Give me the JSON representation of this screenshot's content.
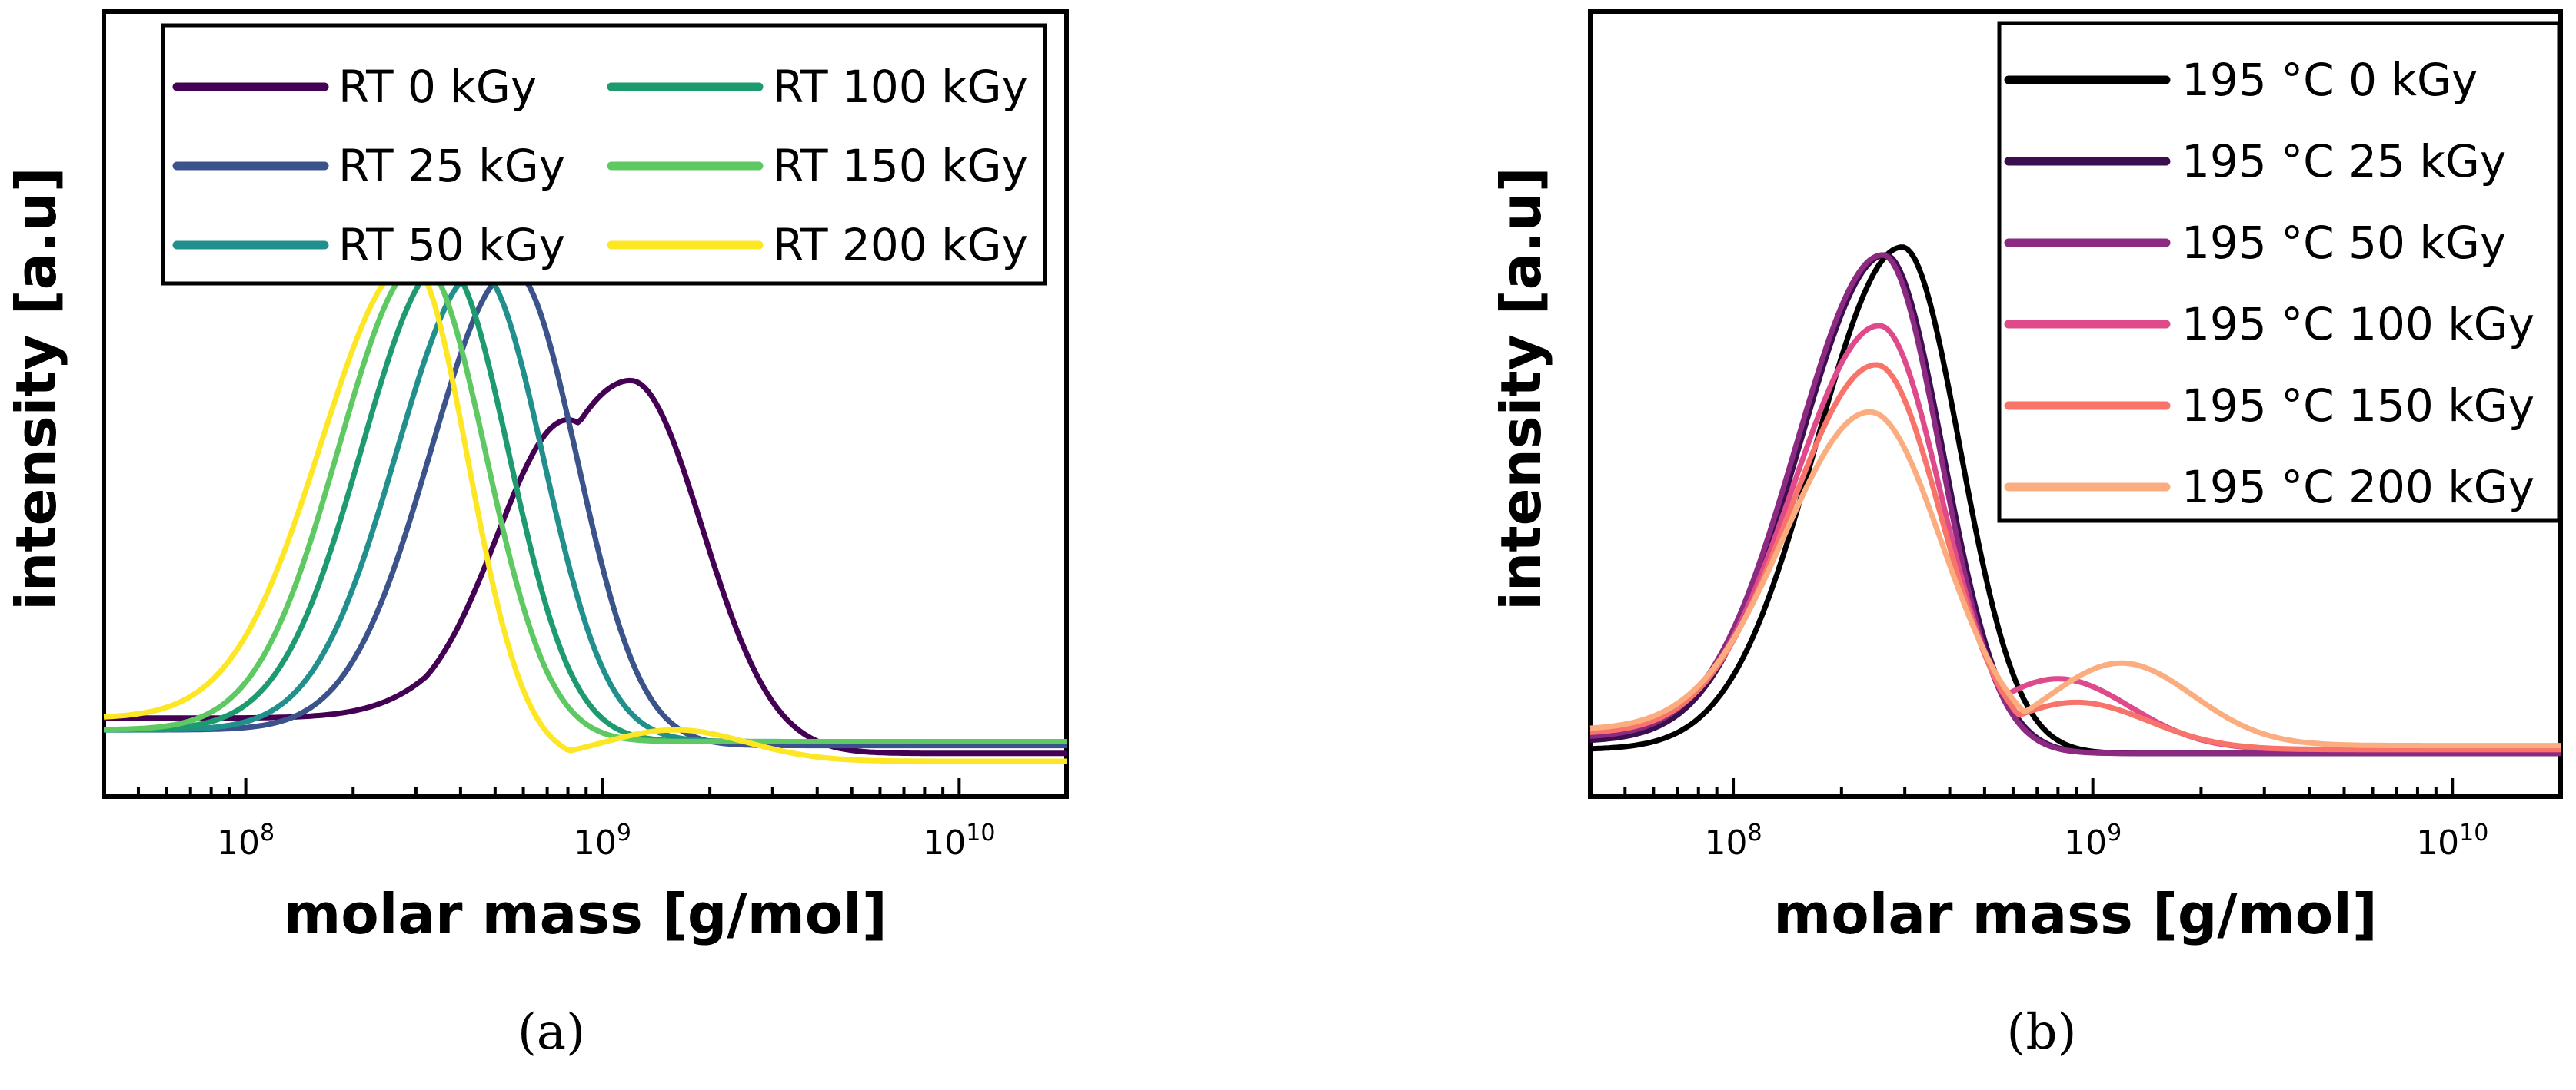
{
  "chart_data": [
    {
      "type": "line",
      "panel_label": "(a)",
      "xlabel": "molar mass [g/mol]",
      "ylabel": "intensity [a.u]",
      "xscale": "log",
      "xlim": [
        40000000.0,
        20000000000.0
      ],
      "ylim": [
        0,
        1
      ],
      "x_tick_labels": [
        {
          "value": 100000000.0,
          "base": "10",
          "exp": "8"
        },
        {
          "value": 1000000000.0,
          "base": "10",
          "exp": "9"
        },
        {
          "value": 10000000000.0,
          "base": "10",
          "exp": "10"
        }
      ],
      "grid": false,
      "legend_placement": "top-right",
      "legend_columns": 2,
      "series": [
        {
          "name": "RT 0 kGy",
          "color": "#440154",
          "peak_x": 1200000000.0,
          "peak_y": 0.53,
          "width_left": 0.28,
          "width_right": 0.2,
          "base_left": 0.1,
          "base_right": 0.055,
          "shoulder_x": 800000000.0,
          "shoulder_y": 0.48
        },
        {
          "name": "RT 25 kGy",
          "color": "#3b528b",
          "peak_x": 560000000.0,
          "peak_y": 0.67,
          "width_left": 0.23,
          "width_right": 0.18,
          "base_left": 0.085,
          "base_right": 0.065
        },
        {
          "name": "RT 50 kGy",
          "color": "#21908d",
          "peak_x": 450000000.0,
          "peak_y": 0.67,
          "width_left": 0.23,
          "width_right": 0.18,
          "base_left": 0.085,
          "base_right": 0.07
        },
        {
          "name": "RT 100 kGy",
          "color": "#1e9b6e",
          "peak_x": 360000000.0,
          "peak_y": 0.68,
          "width_left": 0.23,
          "width_right": 0.18,
          "base_left": 0.085,
          "base_right": 0.07
        },
        {
          "name": "RT 150 kGy",
          "color": "#5ec962",
          "peak_x": 310000000.0,
          "peak_y": 0.68,
          "width_left": 0.23,
          "width_right": 0.18,
          "base_left": 0.085,
          "base_right": 0.07
        },
        {
          "name": "RT 200 kGy",
          "color": "#fde725",
          "peak_x": 290000000.0,
          "peak_y": 0.68,
          "width_left": 0.25,
          "width_right": 0.16,
          "base_left": 0.1,
          "base_right": 0.045,
          "shoulder_x": 1600000000.0,
          "shoulder_y": 0.085
        }
      ]
    },
    {
      "type": "line",
      "panel_label": "(b)",
      "xlabel": "molar mass [g/mol]",
      "ylabel": "intensity [a.u]",
      "xscale": "log",
      "xlim": [
        40000000.0,
        20000000000.0
      ],
      "ylim": [
        0,
        1
      ],
      "x_tick_labels": [
        {
          "value": 100000000.0,
          "base": "10",
          "exp": "8"
        },
        {
          "value": 1000000000.0,
          "base": "10",
          "exp": "9"
        },
        {
          "value": 10000000000.0,
          "base": "10",
          "exp": "10"
        }
      ],
      "grid": false,
      "legend_placement": "top-right",
      "legend_columns": 1,
      "series": [
        {
          "name": "195 °C 0 kGy",
          "color": "#000000",
          "peak_x": 295000000.0,
          "peak_y": 0.7,
          "width_left": 0.24,
          "width_right": 0.16,
          "base_left": 0.06,
          "base_right": 0.055
        },
        {
          "name": "195 °C 25 kGy",
          "color": "#3b0f4f",
          "peak_x": 265000000.0,
          "peak_y": 0.69,
          "width_left": 0.24,
          "width_right": 0.16,
          "base_left": 0.07,
          "base_right": 0.055
        },
        {
          "name": "195 °C 50 kGy",
          "color": "#8c2981",
          "peak_x": 260000000.0,
          "peak_y": 0.69,
          "width_left": 0.24,
          "width_right": 0.16,
          "base_left": 0.075,
          "base_right": 0.055
        },
        {
          "name": "195 °C 100 kGy",
          "color": "#de4a8a",
          "peak_x": 255000000.0,
          "peak_y": 0.6,
          "width_left": 0.24,
          "width_right": 0.17,
          "base_left": 0.08,
          "base_right": 0.06,
          "shoulder_x": 800000000.0,
          "shoulder_y": 0.15
        },
        {
          "name": "195 °C 150 kGy",
          "color": "#f8736a",
          "peak_x": 250000000.0,
          "peak_y": 0.55,
          "width_left": 0.24,
          "width_right": 0.18,
          "base_left": 0.08,
          "base_right": 0.06,
          "shoulder_x": 900000000.0,
          "shoulder_y": 0.12
        },
        {
          "name": "195 °C 200 kGy",
          "color": "#fcad7f",
          "peak_x": 240000000.0,
          "peak_y": 0.49,
          "width_left": 0.24,
          "width_right": 0.2,
          "base_left": 0.085,
          "base_right": 0.065,
          "shoulder_x": 1200000000.0,
          "shoulder_y": 0.17
        }
      ]
    }
  ]
}
